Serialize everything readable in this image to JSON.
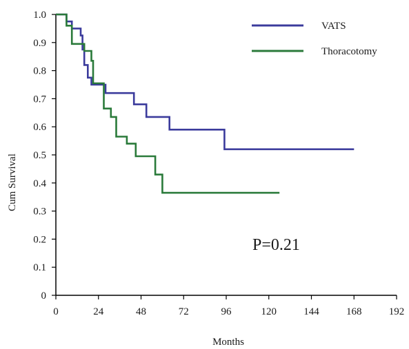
{
  "chart_data": {
    "type": "line",
    "step": true,
    "xlabel": "Months",
    "ylabel": "Cum Survival",
    "xlim": [
      0,
      192
    ],
    "ylim": [
      0,
      1.0
    ],
    "x_ticks": [
      "0",
      "24",
      "48",
      "72",
      "96",
      "120",
      "144",
      "168",
      "192"
    ],
    "y_ticks": [
      "0",
      "0.1",
      "0.2",
      "0.3",
      "0.4",
      "0.5",
      "0.6",
      "0.7",
      "0.8",
      "0.9",
      "1.0"
    ],
    "legend_position": "top-right",
    "annotation": "P=0.21",
    "series": [
      {
        "name": "VATS",
        "color": "#3b3b9c",
        "points": [
          [
            0,
            1.0
          ],
          [
            6,
            1.0
          ],
          [
            6,
            0.975
          ],
          [
            9,
            0.975
          ],
          [
            9,
            0.95
          ],
          [
            14,
            0.95
          ],
          [
            14,
            0.925
          ],
          [
            15,
            0.925
          ],
          [
            15,
            0.875
          ],
          [
            16,
            0.875
          ],
          [
            16,
            0.82
          ],
          [
            18,
            0.82
          ],
          [
            18,
            0.775
          ],
          [
            20,
            0.775
          ],
          [
            20,
            0.75
          ],
          [
            28,
            0.75
          ],
          [
            28,
            0.72
          ],
          [
            44,
            0.72
          ],
          [
            44,
            0.68
          ],
          [
            51,
            0.68
          ],
          [
            51,
            0.635
          ],
          [
            64,
            0.635
          ],
          [
            64,
            0.59
          ],
          [
            95,
            0.59
          ],
          [
            95,
            0.52
          ],
          [
            168,
            0.52
          ]
        ]
      },
      {
        "name": "Thoracotomy",
        "color": "#2a7a3a",
        "points": [
          [
            0,
            1.0
          ],
          [
            6,
            1.0
          ],
          [
            6,
            0.96
          ],
          [
            9,
            0.96
          ],
          [
            9,
            0.895
          ],
          [
            16,
            0.895
          ],
          [
            16,
            0.87
          ],
          [
            20,
            0.87
          ],
          [
            20,
            0.835
          ],
          [
            21,
            0.835
          ],
          [
            21,
            0.755
          ],
          [
            27,
            0.755
          ],
          [
            27,
            0.665
          ],
          [
            31,
            0.665
          ],
          [
            31,
            0.635
          ],
          [
            34,
            0.635
          ],
          [
            34,
            0.565
          ],
          [
            40,
            0.565
          ],
          [
            40,
            0.54
          ],
          [
            45,
            0.54
          ],
          [
            45,
            0.495
          ],
          [
            56,
            0.495
          ],
          [
            56,
            0.43
          ],
          [
            60,
            0.43
          ],
          [
            60,
            0.365
          ],
          [
            126,
            0.365
          ]
        ]
      }
    ]
  }
}
